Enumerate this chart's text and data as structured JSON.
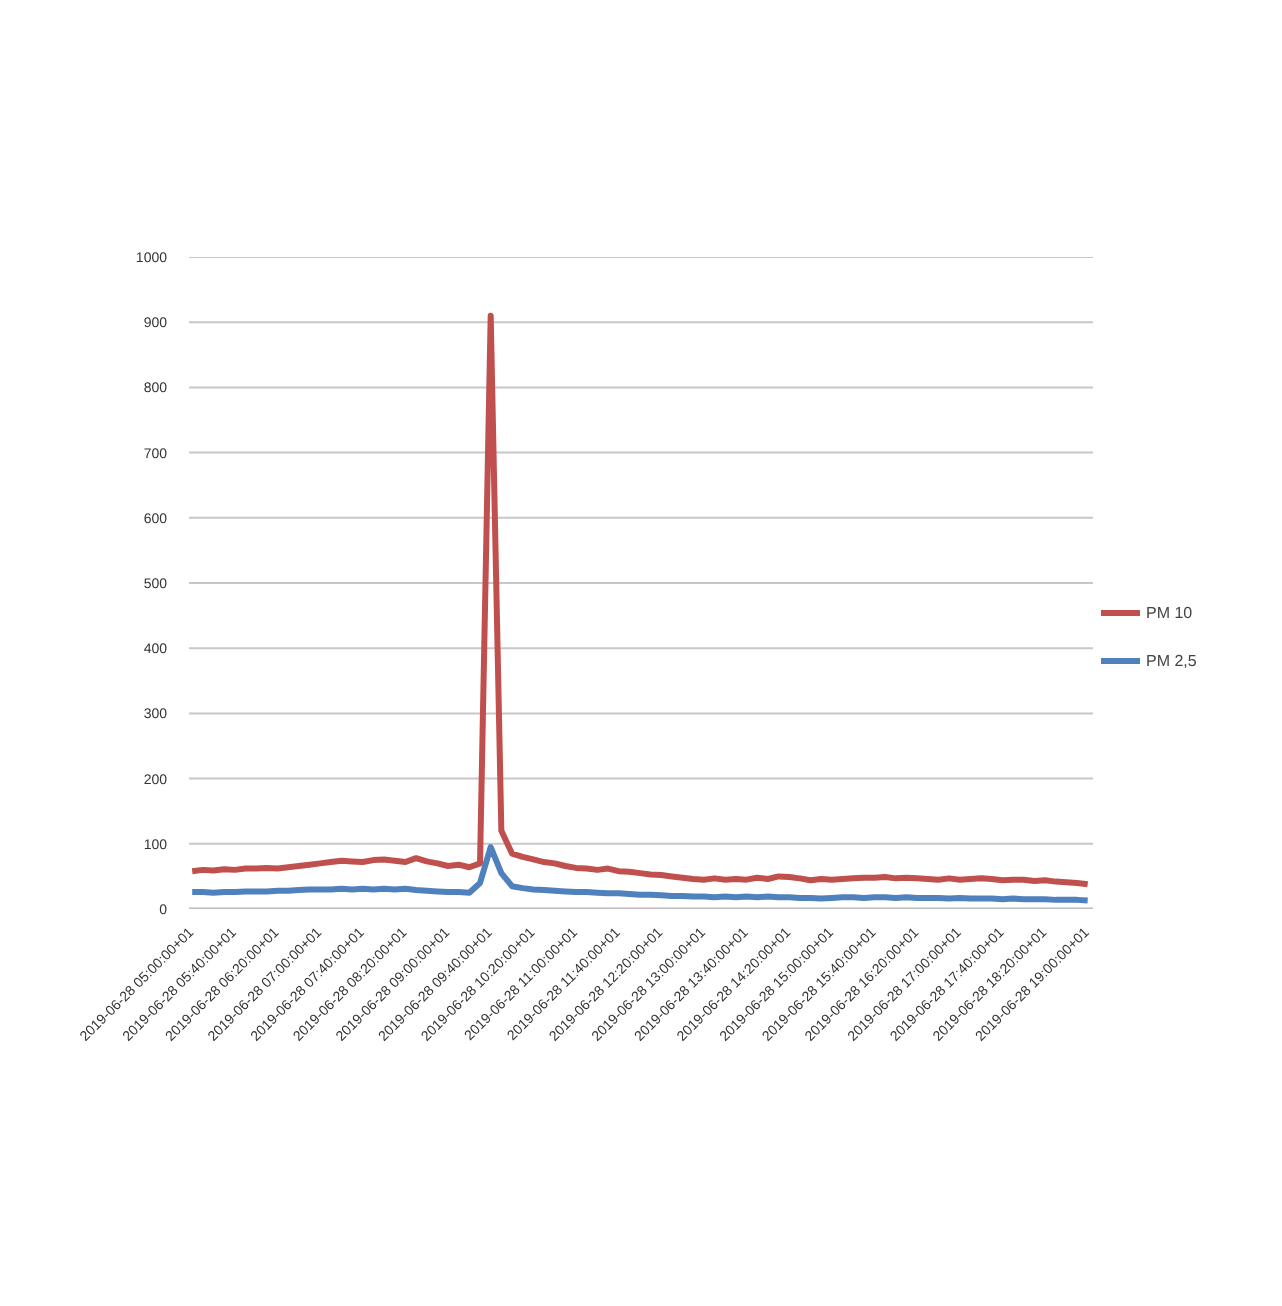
{
  "chart_data": {
    "type": "line",
    "categories": [
      "2019-06-28 05:00:00+01",
      null,
      null,
      null,
      "2019-06-28 05:40:00+01",
      null,
      null,
      null,
      "2019-06-28 06:20:00+01",
      null,
      null,
      null,
      "2019-06-28 07:00:00+01",
      null,
      null,
      null,
      "2019-06-28 07:40:00+01",
      null,
      null,
      null,
      "2019-06-28 08:20:00+01",
      null,
      null,
      null,
      "2019-06-28 09:00:00+01",
      null,
      null,
      null,
      "2019-06-28 09:40:00+01",
      null,
      null,
      null,
      "2019-06-28 10:20:00+01",
      null,
      null,
      null,
      "2019-06-28 11:00:00+01",
      null,
      null,
      null,
      "2019-06-28 11:40:00+01",
      null,
      null,
      null,
      "2019-06-28 12:20:00+01",
      null,
      null,
      null,
      "2019-06-28 13:00:00+01",
      null,
      null,
      null,
      "2019-06-28 13:40:00+01",
      null,
      null,
      null,
      "2019-06-28 14:20:00+01",
      null,
      null,
      null,
      "2019-06-28 15:00:00+01",
      null,
      null,
      null,
      "2019-06-28 15:40:00+01",
      null,
      null,
      null,
      "2019-06-28 16:20:00+01",
      null,
      null,
      null,
      "2019-06-28 17:00:00+01",
      null,
      null,
      null,
      "2019-06-28 17:40:00+01",
      null,
      null,
      null,
      "2019-06-28 18:20:00+01",
      null,
      null,
      null,
      "2019-06-28 19:00:00+01"
    ],
    "series": [
      {
        "name": "PM 10",
        "color": "#c0504d",
        "values": [
          58,
          60,
          59,
          61,
          60,
          62,
          62,
          63,
          62,
          64,
          66,
          68,
          70,
          72,
          74,
          73,
          72,
          75,
          76,
          74,
          72,
          78,
          73,
          70,
          66,
          68,
          64,
          70,
          910,
          120,
          85,
          80,
          76,
          72,
          70,
          66,
          63,
          62,
          60,
          62,
          58,
          57,
          55,
          53,
          52,
          50,
          48,
          46,
          45,
          47,
          45,
          46,
          45,
          48,
          46,
          50,
          49,
          47,
          44,
          46,
          45,
          46,
          47,
          48,
          48,
          49,
          47,
          48,
          47,
          46,
          45,
          47,
          45,
          46,
          47,
          46,
          44,
          45,
          45,
          43,
          44,
          42,
          41,
          40,
          38
        ]
      },
      {
        "name": "PM 2,5",
        "color": "#4f81bd",
        "values": [
          26,
          26,
          25,
          26,
          26,
          27,
          27,
          27,
          28,
          28,
          29,
          30,
          30,
          30,
          31,
          30,
          31,
          30,
          31,
          30,
          31,
          29,
          28,
          27,
          26,
          26,
          25,
          40,
          95,
          55,
          35,
          32,
          30,
          29,
          28,
          27,
          26,
          26,
          25,
          24,
          24,
          23,
          22,
          22,
          21,
          20,
          20,
          19,
          19,
          18,
          19,
          18,
          19,
          18,
          19,
          18,
          18,
          17,
          17,
          16,
          17,
          18,
          18,
          17,
          18,
          18,
          17,
          18,
          17,
          17,
          17,
          16,
          17,
          16,
          16,
          16,
          15,
          16,
          15,
          15,
          15,
          14,
          14,
          14,
          13
        ]
      }
    ],
    "ylim": [
      0,
      1000
    ],
    "yticks": [
      0,
      100,
      200,
      300,
      400,
      500,
      600,
      700,
      800,
      900,
      1000
    ],
    "grid": "y",
    "legend": "right",
    "marker": "none",
    "line_style": "solid"
  }
}
